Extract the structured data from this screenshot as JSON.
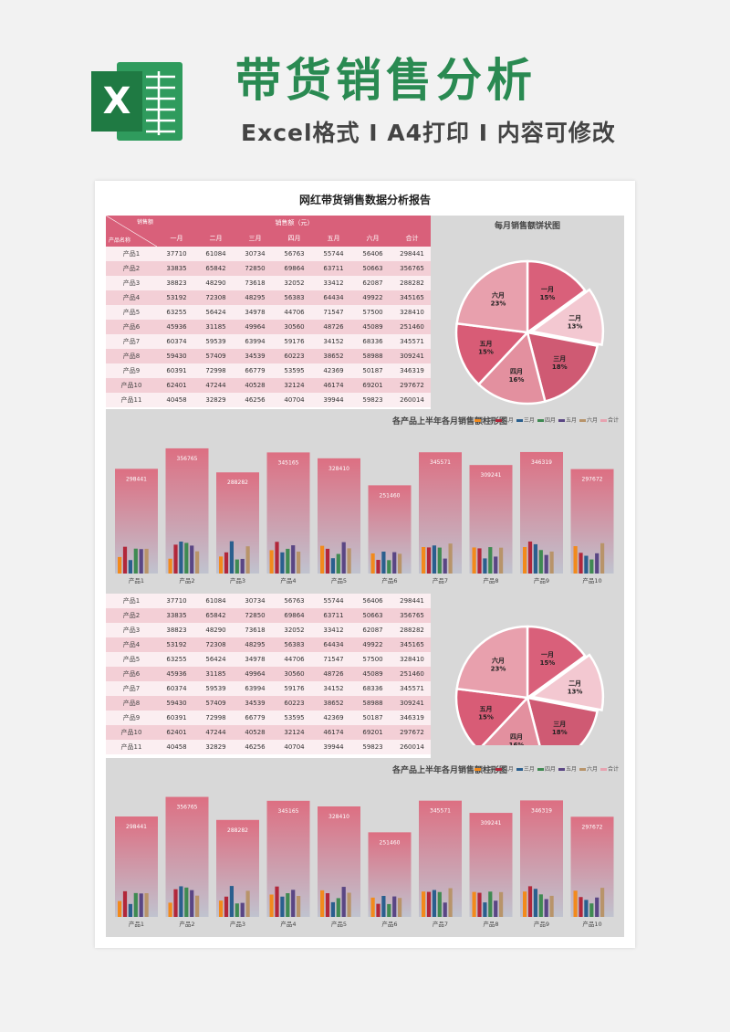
{
  "hero": {
    "title": "带货销售分析",
    "subtitle": "Excel格式 I A4打印 I 内容可修改",
    "logo_letter": "X"
  },
  "report": {
    "title": "网红带货销售数据分析报告",
    "corner_top": "销售额",
    "corner_bottom": "产品名称",
    "group_header": "销售额（元）",
    "columns": [
      "一月",
      "二月",
      "三月",
      "四月",
      "五月",
      "六月",
      "合计"
    ],
    "rows": [
      {
        "name": "产品1",
        "values": [
          "37710",
          "61084",
          "30734",
          "56763",
          "55744",
          "56406",
          "298441"
        ]
      },
      {
        "name": "产品2",
        "values": [
          "33835",
          "65842",
          "72850",
          "69864",
          "63711",
          "50663",
          "356765"
        ]
      },
      {
        "name": "产品3",
        "values": [
          "38823",
          "48290",
          "73618",
          "32052",
          "33412",
          "62087",
          "288282"
        ]
      },
      {
        "name": "产品4",
        "values": [
          "53192",
          "72308",
          "48295",
          "56383",
          "64434",
          "49922",
          "345165"
        ]
      },
      {
        "name": "产品5",
        "values": [
          "63255",
          "56424",
          "34978",
          "44706",
          "71547",
          "57500",
          "328410"
        ]
      },
      {
        "name": "产品6",
        "values": [
          "45936",
          "31185",
          "49964",
          "30560",
          "48726",
          "45089",
          "251460"
        ]
      },
      {
        "name": "产品7",
        "values": [
          "60374",
          "59539",
          "63994",
          "59176",
          "34152",
          "68336",
          "345571"
        ]
      },
      {
        "name": "产品8",
        "values": [
          "59430",
          "57409",
          "34539",
          "60223",
          "38652",
          "58988",
          "309241"
        ]
      },
      {
        "name": "产品9",
        "values": [
          "60391",
          "72998",
          "66779",
          "53595",
          "42369",
          "50187",
          "346319"
        ]
      },
      {
        "name": "产品10",
        "values": [
          "62401",
          "47244",
          "40528",
          "32124",
          "46174",
          "69201",
          "297672"
        ]
      },
      {
        "name": "产品11",
        "values": [
          "40458",
          "32829",
          "46256",
          "40704",
          "39944",
          "59823",
          "260014"
        ]
      }
    ]
  },
  "pie_title": "每月销售额饼状图",
  "bar_title": "各产品上半年各月销售额柱形图",
  "legend": [
    "一月",
    "二月",
    "三月",
    "四月",
    "五月",
    "六月",
    "合计"
  ],
  "colors": {
    "brand_green": "#2a8a52",
    "header_red": "#d9607a",
    "months": [
      "#f28a1c",
      "#b2273a",
      "#2a5f8e",
      "#3f8a52",
      "#5a4684",
      "#b8946a"
    ],
    "pie": [
      "#d9607a",
      "#f3c8d1",
      "#cf5a73",
      "#e3909f",
      "#d85c76",
      "#e8a0ad"
    ]
  },
  "chart_data": [
    {
      "type": "pie",
      "title": "每月销售额饼状图",
      "labels": [
        "一月",
        "二月",
        "三月",
        "四月",
        "五月",
        "六月"
      ],
      "values": [
        15,
        13,
        18,
        16,
        15,
        23
      ],
      "value_labels": [
        "15%",
        "13%",
        "18%",
        "16%",
        "15%",
        "23%"
      ]
    },
    {
      "type": "bar",
      "title": "各产品上半年各月销售额柱形图",
      "categories": [
        "产品1",
        "产品2",
        "产品3",
        "产品4",
        "产品5",
        "产品6",
        "产品7",
        "产品8",
        "产品9",
        "产品10"
      ],
      "series": [
        {
          "name": "一月",
          "values": [
            37710,
            33835,
            38823,
            53192,
            63255,
            45936,
            60374,
            59430,
            60391,
            62401
          ]
        },
        {
          "name": "二月",
          "values": [
            61084,
            65842,
            48290,
            72308,
            56424,
            31185,
            59539,
            57409,
            72998,
            47244
          ]
        },
        {
          "name": "三月",
          "values": [
            30734,
            72850,
            73618,
            48295,
            34978,
            49964,
            63994,
            34539,
            66779,
            40528
          ]
        },
        {
          "name": "四月",
          "values": [
            56763,
            69864,
            32052,
            56383,
            44706,
            30560,
            59176,
            60223,
            53595,
            32124
          ]
        },
        {
          "name": "五月",
          "values": [
            55744,
            63711,
            33412,
            64434,
            71547,
            48726,
            34152,
            38652,
            42369,
            46174
          ]
        },
        {
          "name": "六月",
          "values": [
            56406,
            50663,
            62087,
            49922,
            57500,
            45089,
            68336,
            58988,
            50187,
            69201
          ]
        },
        {
          "name": "合计",
          "values": [
            298441,
            356765,
            288282,
            345165,
            328410,
            251460,
            345571,
            309241,
            346319,
            297672
          ]
        }
      ]
    }
  ]
}
